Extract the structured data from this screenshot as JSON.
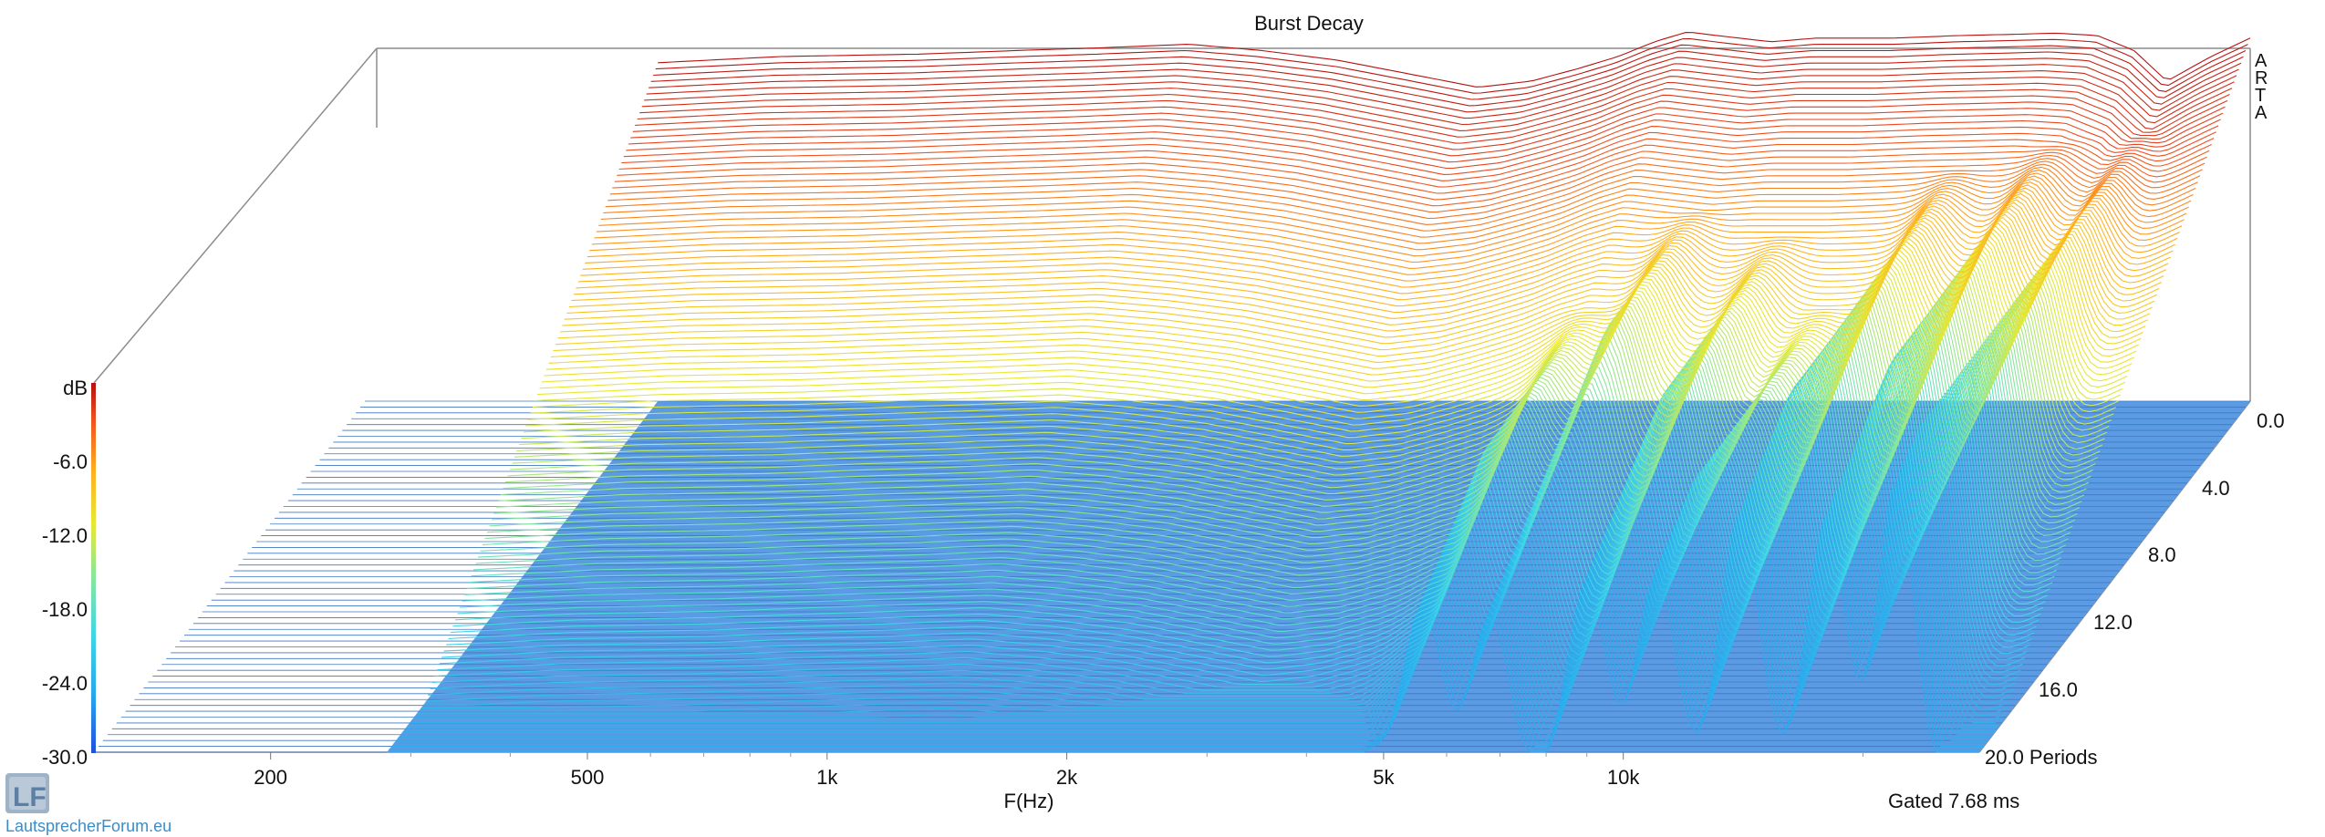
{
  "chart_data": {
    "type": "waterfall",
    "title": "Burst Decay",
    "xlabel": "F(Hz)",
    "x_scale": "log",
    "xlim": [
      120,
      28000
    ],
    "x_ticks": [
      {
        "value": 200,
        "label": "200"
      },
      {
        "value": 500,
        "label": "500"
      },
      {
        "value": 1000,
        "label": "1k"
      },
      {
        "value": 2000,
        "label": "2k"
      },
      {
        "value": 5000,
        "label": "5k"
      },
      {
        "value": 10000,
        "label": "10k"
      }
    ],
    "zlabel": "dB",
    "zlim": [
      -30,
      0
    ],
    "z_ticks": [
      "-6.0",
      "-12.0",
      "-18.0",
      "-24.0",
      "-30.0"
    ],
    "depth_ticks": [
      "0.0",
      "4.0",
      "8.0",
      "12.0",
      "16.0",
      "20.0 Periods"
    ],
    "depth_range_periods": [
      0,
      20
    ],
    "gate_label": "Gated 7.68 ms",
    "brand_label": [
      "A",
      "R",
      "T",
      "A"
    ],
    "floor_color": "#5b9be3",
    "colormap": [
      "#1f4fe0",
      "#27a8ee",
      "#3fd6e8",
      "#8ae79a",
      "#e8e832",
      "#ffb020",
      "#f0501e",
      "#b40f0f"
    ],
    "front_curve_db": {
      "freqs_hz": [
        280,
        400,
        600,
        800,
        1000,
        1300,
        1600,
        2000,
        2500,
        3000,
        3500,
        4000,
        4500,
        5000,
        5500,
        6000,
        7000,
        8000,
        9000,
        10000,
        11000,
        12000,
        14000,
        16000,
        18000,
        20000,
        22000,
        25000,
        28000
      ],
      "values": [
        -2.5,
        -2.0,
        -1.8,
        -1.5,
        -1.3,
        -1.0,
        -1.5,
        -2.3,
        -3.5,
        -4.5,
        -4.0,
        -3.0,
        -2.0,
        -0.8,
        0.0,
        -0.3,
        -0.8,
        -0.5,
        -0.5,
        -0.5,
        -0.4,
        -0.3,
        -0.2,
        -0.1,
        -0.3,
        -1.5,
        -4.0,
        -2.0,
        -0.5
      ]
    },
    "decay_resonances": [
      {
        "freq_hz": 1200,
        "start_db": -25,
        "sustain_periods": 2
      },
      {
        "freq_hz": 1700,
        "start_db": -20,
        "sustain_periods": 3
      },
      {
        "freq_hz": 2300,
        "start_db": -19,
        "sustain_periods": 5
      },
      {
        "freq_hz": 2700,
        "start_db": -18,
        "sustain_periods": 6
      },
      {
        "freq_hz": 4800,
        "start_db": -14,
        "sustain_periods": 6
      },
      {
        "freq_hz": 5600,
        "start_db": -12,
        "sustain_periods": 15
      },
      {
        "freq_hz": 6800,
        "start_db": -8,
        "sustain_periods": 11
      },
      {
        "freq_hz": 9000,
        "start_db": -9,
        "sustain_periods": 14
      },
      {
        "freq_hz": 11000,
        "start_db": -12,
        "sustain_periods": 17
      },
      {
        "freq_hz": 14000,
        "start_db": -6,
        "sustain_periods": 16
      },
      {
        "freq_hz": 18000,
        "start_db": -5,
        "sustain_periods": 15
      },
      {
        "freq_hz": 22000,
        "start_db": -6,
        "sustain_periods": 18
      }
    ]
  },
  "watermark": {
    "logo_letters": "LF",
    "text": "LautsprecherForum.eu"
  }
}
